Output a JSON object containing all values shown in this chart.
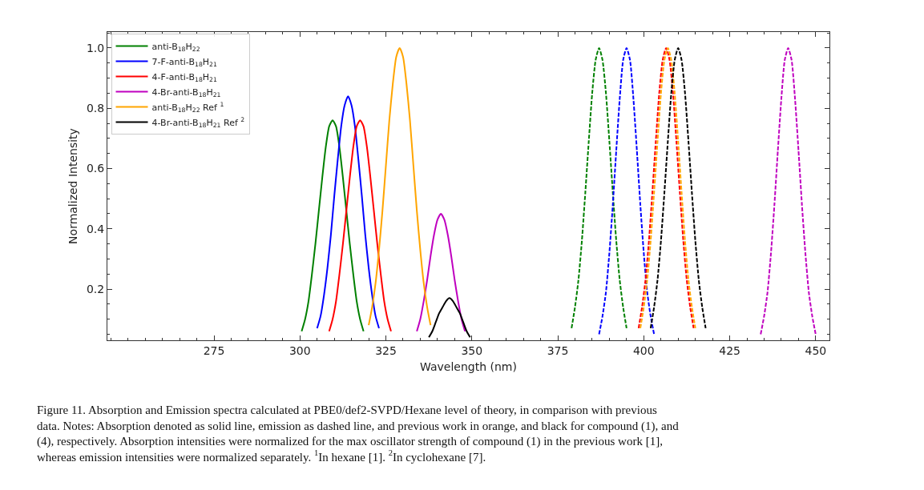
{
  "chart_data": {
    "type": "line",
    "xlabel": "Wavelength (nm)",
    "ylabel": "Normalized Intensity",
    "xlim": [
      244,
      454
    ],
    "xticks": [
      275,
      300,
      325,
      350,
      375,
      400,
      425,
      450
    ],
    "ylim": [
      0.03,
      1.053
    ],
    "yticks": [
      0.2,
      0.4,
      0.6,
      0.8,
      {
        "value": 1,
        "label": "1.0"
      }
    ],
    "legend": "top left",
    "marker": "none",
    "series": [
      {
        "name": "anti-B$_{18}$H$_{22}$",
        "color": "#008000",
        "line_style": "solid",
        "x": [
          300.5,
          301.5,
          302.5,
          303.5,
          304.5,
          305.5,
          306.5,
          307.5,
          308.5,
          309.5,
          310.5,
          311.5,
          312.5,
          313.5,
          314.5,
          315.5,
          316.5,
          317.5,
          318.5
        ],
        "values": [
          0.06,
          0.1,
          0.16,
          0.25,
          0.35,
          0.46,
          0.57,
          0.67,
          0.74,
          0.76,
          0.74,
          0.67,
          0.57,
          0.46,
          0.35,
          0.25,
          0.16,
          0.1,
          0.06
        ]
      },
      {
        "name": "7-F-anti-B$_{18}$H$_{21}$",
        "color": "#0000ff",
        "line_style": "solid",
        "x": [
          305,
          306,
          307,
          308,
          309,
          310,
          311,
          312,
          313,
          314,
          315,
          316,
          317,
          318,
          319,
          320,
          321,
          322,
          323
        ],
        "values": [
          0.07,
          0.11,
          0.18,
          0.27,
          0.38,
          0.51,
          0.63,
          0.74,
          0.81,
          0.84,
          0.81,
          0.74,
          0.63,
          0.51,
          0.38,
          0.27,
          0.18,
          0.11,
          0.07
        ]
      },
      {
        "name": "4-F-anti-B$_{18}$H$_{21}$",
        "color": "#ff0000",
        "line_style": "solid",
        "x": [
          308.5,
          309.5,
          310.5,
          311.5,
          312.5,
          313.5,
          314.5,
          315.5,
          316.5,
          317.5,
          318.5,
          319.5,
          320.5,
          321.5,
          322.5,
          323.5,
          324.5,
          325.5,
          326.5
        ],
        "values": [
          0.06,
          0.1,
          0.16,
          0.25,
          0.35,
          0.46,
          0.57,
          0.67,
          0.74,
          0.76,
          0.74,
          0.67,
          0.57,
          0.46,
          0.35,
          0.25,
          0.16,
          0.1,
          0.06
        ]
      },
      {
        "name": "4-Br-anti-B$_{18}$H$_{21}$",
        "color": "#bf00bf",
        "line_style": "solid",
        "x": [
          334,
          335,
          336,
          337,
          338,
          339,
          340,
          341,
          342,
          343,
          344,
          345,
          346,
          347,
          348
        ],
        "values": [
          0.06,
          0.1,
          0.16,
          0.23,
          0.31,
          0.38,
          0.43,
          0.45,
          0.43,
          0.38,
          0.31,
          0.23,
          0.16,
          0.1,
          0.06
        ]
      },
      {
        "name": "anti-B$_{18}$H$_{22}$ Ref $^{1}$",
        "color": "#ffa500",
        "line_style": "solid",
        "x": [
          320,
          321,
          322,
          323,
          324,
          325,
          326,
          327,
          328,
          329,
          330,
          331,
          332,
          333,
          334,
          335,
          336,
          337,
          338
        ],
        "values": [
          0.08,
          0.14,
          0.22,
          0.33,
          0.46,
          0.61,
          0.76,
          0.88,
          0.97,
          1.0,
          0.97,
          0.88,
          0.76,
          0.61,
          0.46,
          0.33,
          0.22,
          0.14,
          0.08
        ]
      },
      {
        "name": "4-Br-anti-B$_{18}$H$_{21}$ Ref $^{2}$",
        "color": "#000000",
        "line_style": "solid",
        "x": [
          337.5,
          338.5,
          339.5,
          340.5,
          341.5,
          342.5,
          343.5,
          344.5,
          345.5,
          346.5,
          347.5,
          348.5,
          349.5
        ],
        "values": [
          0.04,
          0.06,
          0.09,
          0.12,
          0.14,
          0.16,
          0.17,
          0.16,
          0.14,
          0.12,
          0.09,
          0.06,
          0.04
        ]
      },
      {
        "color": "#008000",
        "line_style": "dashed",
        "x": [
          379,
          380,
          381,
          382,
          383,
          384,
          385,
          386,
          387,
          388,
          389,
          390,
          391,
          392,
          393,
          394,
          395
        ],
        "values": [
          0.07,
          0.14,
          0.23,
          0.36,
          0.52,
          0.69,
          0.85,
          0.96,
          1.0,
          0.96,
          0.85,
          0.69,
          0.52,
          0.36,
          0.23,
          0.14,
          0.07
        ]
      },
      {
        "color": "#0000ff",
        "line_style": "dashed",
        "x": [
          387,
          388,
          389,
          390,
          391,
          392,
          393,
          394,
          395,
          396,
          397,
          398,
          399,
          400,
          401,
          402,
          403
        ],
        "values": [
          0.05,
          0.11,
          0.19,
          0.32,
          0.48,
          0.66,
          0.83,
          0.96,
          1.0,
          0.96,
          0.83,
          0.66,
          0.48,
          0.32,
          0.19,
          0.11,
          0.05
        ]
      },
      {
        "color": "#ff0000",
        "line_style": "dashed",
        "x": [
          398.5,
          399.5,
          400.5,
          401.5,
          402.5,
          403.5,
          404.5,
          405.5,
          406.5,
          407.5,
          408.5,
          409.5,
          410.5,
          411.5,
          412.5,
          413.5,
          414.5
        ],
        "values": [
          0.07,
          0.14,
          0.23,
          0.36,
          0.52,
          0.69,
          0.85,
          0.96,
          1.0,
          0.96,
          0.85,
          0.69,
          0.52,
          0.36,
          0.23,
          0.14,
          0.07
        ]
      },
      {
        "color": "#ffa500",
        "line_style": "dashed",
        "x": [
          399,
          400,
          401,
          402,
          403,
          404,
          405,
          406,
          407,
          408,
          409,
          410,
          411,
          412,
          413,
          414,
          415
        ],
        "values": [
          0.07,
          0.14,
          0.23,
          0.36,
          0.52,
          0.69,
          0.85,
          0.96,
          1.0,
          0.96,
          0.85,
          0.69,
          0.52,
          0.36,
          0.23,
          0.14,
          0.07
        ]
      },
      {
        "color": "#000000",
        "line_style": "dashed",
        "x": [
          402,
          403,
          404,
          405,
          406,
          407,
          408,
          409,
          410,
          411,
          412,
          413,
          414,
          415,
          416,
          417,
          418
        ],
        "values": [
          0.07,
          0.14,
          0.23,
          0.36,
          0.52,
          0.69,
          0.85,
          0.96,
          1.0,
          0.96,
          0.85,
          0.69,
          0.52,
          0.36,
          0.23,
          0.14,
          0.07
        ]
      },
      {
        "color": "#bf00bf",
        "line_style": "dashed",
        "x": [
          434,
          435,
          436,
          437,
          438,
          439,
          440,
          441,
          442,
          443,
          444,
          445,
          446,
          447,
          448,
          449,
          450
        ],
        "values": [
          0.05,
          0.11,
          0.19,
          0.32,
          0.48,
          0.66,
          0.83,
          0.96,
          1.0,
          0.96,
          0.83,
          0.66,
          0.48,
          0.32,
          0.19,
          0.11,
          0.05
        ]
      }
    ],
    "annotations": [
      "Figure 11. Absorption and Emission spectra calculated at PBE0/def2-SVPD/Hexane level of theory, in comparison with previous\ndata. Notes: Absorption denoted as solid line, emission as dashed line, and previous work in orange, and black for compound (1), and\n(4), respectively. Absorption intensities were normalized for the max oscillator strength of compound (1) in the previous work [1],\nwhereas emission intensities were normalized separately. $^{1}$In hexane [1]. $^{2}$In cyclohexane [7]."
    ]
  }
}
